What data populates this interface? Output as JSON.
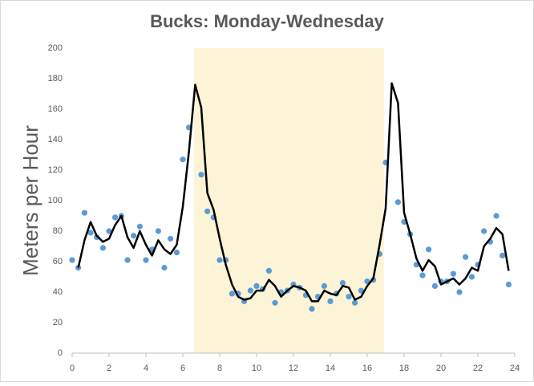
{
  "chart_data": {
    "type": "line",
    "title": "Bucks: Monday-Wednesday",
    "y_label": "Meters per Hour",
    "xlim": [
      0,
      24
    ],
    "ylim": [
      0,
      200
    ],
    "xticks": [
      0,
      2,
      4,
      6,
      8,
      10,
      12,
      14,
      16,
      18,
      20,
      22,
      24
    ],
    "yticks": [
      0,
      20,
      40,
      60,
      80,
      100,
      120,
      140,
      160,
      180,
      200
    ],
    "grid": false,
    "shaded_region": [
      6.6,
      16.9
    ],
    "shaded_color": "#fdf3d6",
    "series": [
      {
        "type": "scatter",
        "color": "#5b9bd5",
        "x": [
          0,
          0.33,
          0.67,
          1,
          1.33,
          1.67,
          2,
          2.33,
          2.67,
          3,
          3.33,
          3.67,
          4,
          4.33,
          4.67,
          5,
          5.33,
          5.67,
          6,
          6.33,
          7,
          7.33,
          7.67,
          8,
          8.33,
          8.67,
          9,
          9.33,
          9.67,
          10,
          10.33,
          10.67,
          11,
          11.33,
          11.67,
          12,
          12.33,
          12.67,
          13,
          13.33,
          13.67,
          14,
          14.33,
          14.67,
          15,
          15.33,
          15.67,
          16,
          16.33,
          16.67,
          17,
          17.67,
          18,
          18.33,
          18.67,
          19,
          19.33,
          19.67,
          20,
          20.33,
          20.67,
          21,
          21.33,
          21.67,
          22,
          22.33,
          22.67,
          23,
          23.33,
          23.67
        ],
        "values": [
          61,
          56,
          92,
          79,
          76,
          69,
          80,
          89,
          90,
          61,
          77,
          83,
          61,
          68,
          80,
          56,
          75,
          66,
          127,
          148,
          117,
          93,
          89,
          61,
          61,
          39,
          39,
          34,
          41,
          44,
          42,
          54,
          33,
          40,
          41,
          45,
          43,
          38,
          29,
          37,
          44,
          34,
          39,
          46,
          37,
          33,
          41,
          47,
          48,
          65,
          125,
          99,
          86,
          78,
          58,
          51,
          68,
          44,
          47,
          47,
          52,
          40,
          63,
          50,
          58,
          80,
          73,
          90,
          64,
          45
        ]
      },
      {
        "type": "line",
        "color": "#000000",
        "x": [
          0.33,
          0.67,
          1,
          1.33,
          1.67,
          2,
          2.33,
          2.67,
          3,
          3.33,
          3.67,
          4,
          4.33,
          4.67,
          5,
          5.33,
          5.67,
          6,
          6.33,
          6.67,
          7,
          7.33,
          7.67,
          8,
          8.33,
          8.67,
          9,
          9.33,
          9.67,
          10,
          10.33,
          10.67,
          11,
          11.33,
          11.67,
          12,
          12.33,
          12.67,
          13,
          13.33,
          13.67,
          14,
          14.33,
          14.67,
          15,
          15.33,
          15.67,
          16,
          16.33,
          16.67,
          17,
          17.33,
          17.67,
          18,
          18.33,
          18.67,
          19,
          19.33,
          19.67,
          20,
          20.33,
          20.67,
          21,
          21.33,
          21.67,
          22,
          22.33,
          22.67,
          23,
          23.33,
          23.67
        ],
        "values": [
          56,
          74,
          86,
          77,
          73,
          75,
          84,
          90,
          76,
          69,
          80,
          71,
          64,
          74,
          68,
          65,
          71,
          96,
          132,
          176,
          161,
          105,
          94,
          75,
          58,
          45,
          37,
          35,
          36,
          41,
          41,
          48,
          44,
          37,
          41,
          44,
          43,
          41,
          34,
          34,
          41,
          39,
          38,
          44,
          43,
          35,
          37,
          44,
          49,
          71,
          95,
          177,
          164,
          92,
          78,
          62,
          54,
          61,
          57,
          45,
          47,
          49,
          45,
          49,
          56,
          54,
          70,
          75,
          82,
          78,
          54
        ]
      }
    ]
  }
}
